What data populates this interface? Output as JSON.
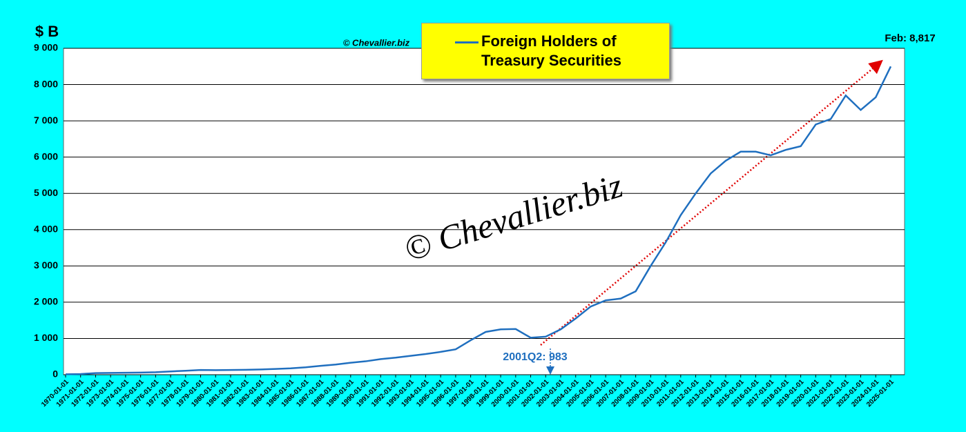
{
  "chart_data": {
    "type": "line",
    "y_label": "$ B",
    "credit": "© Chevallier.biz",
    "watermark": "© Chevallier.biz",
    "annotations": [
      "Feb: 8,817",
      "2001Q2:  983"
    ],
    "categories": [
      "1970-01-01",
      "1971-01-01",
      "1972-01-01",
      "1973-01-01",
      "1974-01-01",
      "1975-01-01",
      "1976-01-01",
      "1977-01-01",
      "1978-01-01",
      "1979-01-01",
      "1980-01-01",
      "1981-01-01",
      "1982-01-01",
      "1983-01-01",
      "1984-01-01",
      "1985-01-01",
      "1986-01-01",
      "1987-01-01",
      "1988-01-01",
      "1989-01-01",
      "1990-01-01",
      "1991-01-01",
      "1992-01-01",
      "1993-01-01",
      "1994-01-01",
      "1995-01-01",
      "1996-01-01",
      "1997-01-01",
      "1998-01-01",
      "1999-01-01",
      "2000-01-01",
      "2001-01-01",
      "2002-01-01",
      "2003-01-01",
      "2004-01-01",
      "2005-01-01",
      "2006-01-01",
      "2007-01-01",
      "2008-01-01",
      "2009-01-01",
      "2010-01-01",
      "2011-01-01",
      "2012-01-01",
      "2013-01-01",
      "2014-01-01",
      "2015-01-01",
      "2016-01-01",
      "2017-01-01",
      "2018-01-01",
      "2019-01-01",
      "2020-01-01",
      "2021-01-01",
      "2022-01-01",
      "2023-01-01",
      "2024-01-01",
      "2025-01-01"
    ],
    "series": [
      {
        "name": "Foreign Holders of Treasury Securities",
        "color": "#1f6fbf",
        "values": [
          12,
          20,
          45,
          50,
          55,
          60,
          70,
          90,
          110,
          130,
          125,
          130,
          135,
          145,
          160,
          175,
          205,
          245,
          280,
          330,
          370,
          430,
          470,
          520,
          570,
          630,
          700,
          950,
          1180,
          1250,
          1260,
          1020,
          1050,
          1250,
          1550,
          1880,
          2050,
          2100,
          2300,
          3000,
          3650,
          4400,
          5000,
          5550,
          5900,
          6150,
          6150,
          6050,
          6200,
          6300,
          6900,
          7050,
          7700,
          7300,
          7650,
          8500
        ]
      }
    ],
    "ylim": [
      0,
      9000
    ],
    "yticks": [
      0,
      {
        "value": 1000,
        "label": "1 000"
      },
      {
        "value": 2000,
        "label": "2 000"
      },
      {
        "value": 3000,
        "label": "3 000"
      },
      {
        "value": 4000,
        "label": "4 000"
      },
      {
        "value": 5000,
        "label": "5 000"
      },
      {
        "value": 6000,
        "label": "6 000"
      },
      {
        "value": 7000,
        "label": "7 000"
      },
      {
        "value": 8000,
        "label": "8 000"
      },
      {
        "value": 9000,
        "label": "9 000"
      }
    ],
    "grid": true
  }
}
